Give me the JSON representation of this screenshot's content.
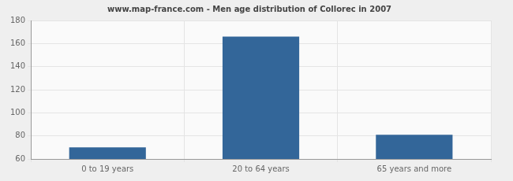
{
  "chart_data": {
    "type": "bar",
    "title": "www.map-france.com - Men age distribution of Collorec in 2007",
    "categories": [
      "0 to 19 years",
      "20 to 64 years",
      "65 years and more"
    ],
    "values": [
      70,
      166,
      81
    ],
    "color": "#336699",
    "ylim": [
      60,
      180
    ],
    "yticks": [
      60,
      80,
      100,
      120,
      140,
      160,
      180
    ],
    "grid": true
  }
}
